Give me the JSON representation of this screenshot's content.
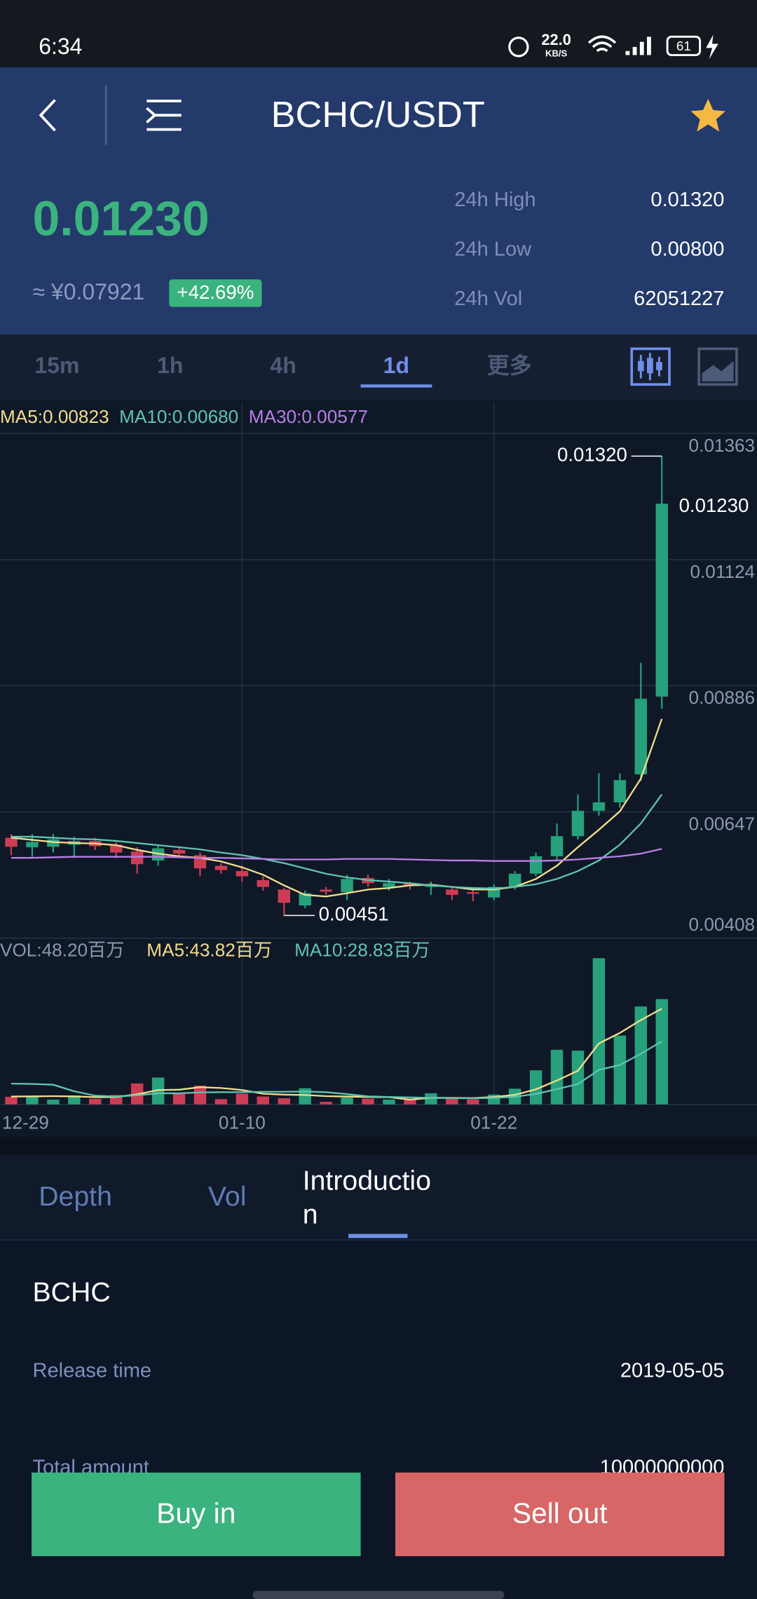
{
  "status_bar": {
    "time": "6:34",
    "net_speed": "22.0",
    "net_unit": "KB/S",
    "battery": "61"
  },
  "header": {
    "title": "BCHC/USDT"
  },
  "ticker": {
    "price": "0.01230",
    "cny": "≈ ¥0.07921",
    "change": "+42.69%",
    "stats": [
      {
        "label": "24h High",
        "value": "0.01320"
      },
      {
        "label": "24h Low",
        "value": "0.00800"
      },
      {
        "label": "24h Vol",
        "value": "62051227"
      }
    ]
  },
  "intervals": {
    "items": [
      "15m",
      "1h",
      "4h",
      "1d",
      "更多"
    ],
    "active": 3
  },
  "chart_data": {
    "type": "candlestick",
    "categories": [
      "12-29",
      null,
      null,
      null,
      null,
      null,
      null,
      null,
      null,
      null,
      null,
      "01-10",
      null,
      null,
      null,
      null,
      null,
      null,
      null,
      null,
      null,
      null,
      null,
      "01-22",
      null,
      null,
      null,
      null,
      null,
      null,
      null,
      null
    ],
    "open": [
      0.00598,
      0.0058,
      0.00581,
      0.00585,
      0.00592,
      0.00585,
      0.00572,
      0.00555,
      0.00575,
      0.00565,
      0.00545,
      0.00535,
      0.00518,
      0.005,
      0.0047,
      0.005,
      0.00495,
      0.00522,
      0.00505,
      0.00512,
      0.00505,
      0.005,
      0.00495,
      0.00485,
      0.00505,
      0.0053,
      0.00563,
      0.00601,
      0.00649,
      0.00665,
      0.00718,
      0.00865
    ],
    "high": [
      0.00605,
      0.00605,
      0.00605,
      0.006,
      0.00598,
      0.0059,
      0.0058,
      0.00585,
      0.0058,
      0.0057,
      0.0055,
      0.00545,
      0.00525,
      0.00503,
      0.00498,
      0.00505,
      0.00528,
      0.00528,
      0.0052,
      0.00515,
      0.00515,
      0.00505,
      0.005,
      0.0051,
      0.00535,
      0.0057,
      0.00625,
      0.0068,
      0.0072,
      0.0072,
      0.00929,
      0.0132
    ],
    "low": [
      0.00565,
      0.00562,
      0.0057,
      0.0056,
      0.00575,
      0.0056,
      0.0053,
      0.00545,
      0.0056,
      0.00525,
      0.0053,
      0.00515,
      0.00498,
      0.00451,
      0.00465,
      0.0049,
      0.0048,
      0.00505,
      0.00498,
      0.005,
      0.0049,
      0.0048,
      0.00478,
      0.0048,
      0.005,
      0.00525,
      0.00555,
      0.00595,
      0.0064,
      0.00655,
      0.00705,
      0.00842
    ],
    "close": [
      0.00581,
      0.0059,
      0.00595,
      0.00592,
      0.00582,
      0.0057,
      0.00548,
      0.00578,
      0.00568,
      0.0054,
      0.00537,
      0.00525,
      0.00505,
      0.00475,
      0.00493,
      0.00496,
      0.0052,
      0.00512,
      0.00512,
      0.00508,
      0.0051,
      0.0049,
      0.00492,
      0.00505,
      0.0053,
      0.00563,
      0.00601,
      0.00649,
      0.00665,
      0.00707,
      0.00861,
      0.0123
    ],
    "up_color": "#26a17b",
    "down_color": "#cc3d55",
    "ylim": [
      0.00408,
      0.01363
    ],
    "yticks": [
      0.01363,
      0.01124,
      0.00886,
      0.00647,
      0.00408
    ],
    "grid": true,
    "last_label": {
      "value": 0.0123,
      "label": "0.01230"
    },
    "max_label": {
      "value": 0.0132,
      "label": "0.01320"
    },
    "min_label": 0.00451,
    "series": [
      {
        "label": "MA5:0.00823",
        "color": "#f4dc8c",
        "values": [
          0.00598,
          0.00594,
          0.0059,
          0.00588,
          0.00587,
          0.00584,
          0.00575,
          0.00568,
          0.00563,
          0.0056,
          0.00553,
          0.00542,
          0.00528,
          0.00508,
          0.0049,
          0.00487,
          0.00493,
          0.005,
          0.00503,
          0.00508,
          0.00509,
          0.00505,
          0.005,
          0.005,
          0.00505,
          0.0052,
          0.00545,
          0.0058,
          0.00613,
          0.00648,
          0.0071,
          0.00823
        ]
      },
      {
        "label": "MA10:0.00680",
        "color": "#5fc4b0",
        "values": [
          0.006,
          0.006,
          0.00598,
          0.00596,
          0.00595,
          0.00592,
          0.00588,
          0.00584,
          0.0058,
          0.00576,
          0.0057,
          0.00565,
          0.00558,
          0.0055,
          0.0054,
          0.0053,
          0.00523,
          0.00518,
          0.00515,
          0.00512,
          0.00508,
          0.00505,
          0.00503,
          0.00502,
          0.00505,
          0.0051,
          0.0052,
          0.00535,
          0.00555,
          0.00585,
          0.00625,
          0.0068
        ]
      },
      {
        "label": "MA30:0.00577",
        "color": "#b77fe6",
        "values": [
          0.0056,
          0.0056,
          0.00561,
          0.00562,
          0.00562,
          0.00562,
          0.00562,
          0.00562,
          0.00561,
          0.0056,
          0.0056,
          0.00559,
          0.00558,
          0.00557,
          0.00557,
          0.00557,
          0.00558,
          0.00558,
          0.00558,
          0.00557,
          0.00556,
          0.00555,
          0.00555,
          0.00554,
          0.00554,
          0.00554,
          0.00555,
          0.00557,
          0.0056,
          0.00563,
          0.00568,
          0.00577
        ]
      }
    ],
    "volume": {
      "label": "VOL:48.20百万",
      "ylim": [
        0,
        70
      ],
      "values": [
        3.5,
        3.8,
        2.2,
        4.1,
        2.5,
        4.3,
        9.6,
        12.3,
        4.8,
        8.6,
        2.4,
        4.9,
        3.6,
        2.8,
        7.4,
        1.2,
        3.1,
        2.6,
        2.2,
        2.0,
        5.1,
        2.9,
        2.3,
        4.5,
        7.2,
        15.6,
        25.0,
        24.6,
        66.9,
        31.5,
        44.8,
        48.2
      ],
      "series": [
        {
          "label": "MA5:43.82百万",
          "color": "#f4dc8c",
          "values": [
            3.6,
            3.7,
            3.8,
            3.7,
            3.3,
            3.4,
            4.6,
            6.6,
            6.7,
            7.9,
            7.5,
            6.6,
            4.9,
            4.5,
            4.3,
            3.8,
            3.6,
            3.4,
            3.3,
            2.2,
            3.0,
            3.0,
            2.9,
            3.4,
            4.4,
            6.9,
            10.9,
            15.4,
            27.9,
            32.7,
            38.6,
            43.82
          ]
        },
        {
          "label": "MA10:28.83百万",
          "color": "#5fc4b0",
          "values": [
            9.5,
            9.4,
            9.0,
            6.0,
            4.0,
            3.6,
            4.2,
            5.1,
            5.1,
            5.5,
            5.6,
            5.6,
            5.8,
            5.8,
            5.9,
            5.6,
            4.7,
            3.7,
            3.4,
            3.2,
            3.0,
            2.9,
            2.8,
            3.0,
            3.5,
            4.8,
            7.0,
            9.3,
            15.8,
            18.0,
            23.2,
            28.83
          ]
        }
      ]
    }
  },
  "detail_tabs": {
    "items": [
      "Depth",
      "Vol",
      "Introduction"
    ],
    "active": 2
  },
  "introduction": {
    "name": "BCHC",
    "rows": [
      [
        "Release time",
        "2019-05-05"
      ],
      [
        "Total amount",
        "10000000000"
      ]
    ]
  },
  "actions": {
    "buy": "Buy in",
    "sell": "Sell out"
  }
}
